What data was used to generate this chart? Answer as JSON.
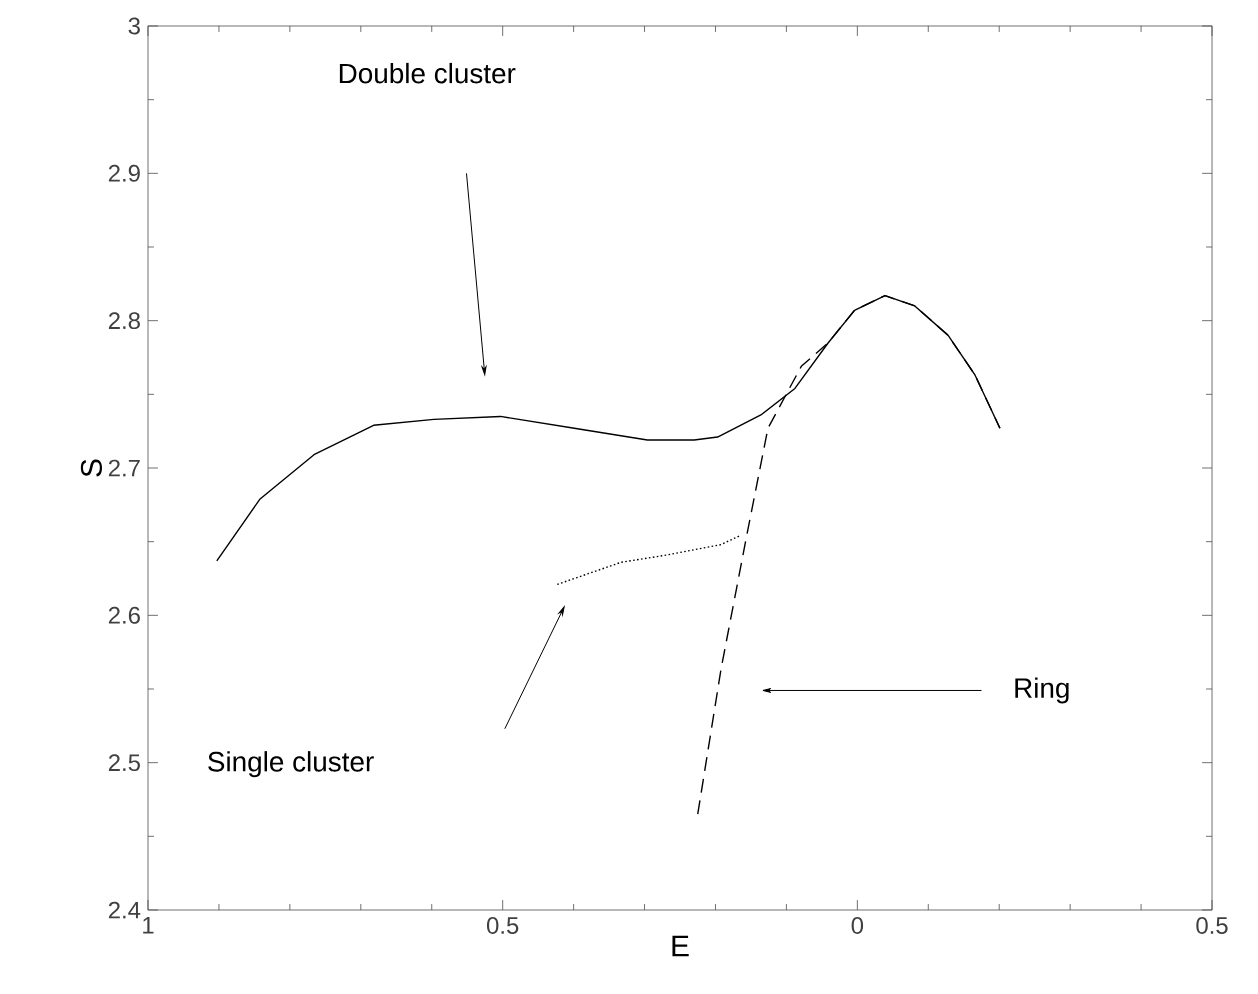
{
  "chart_data": {
    "type": "line",
    "xlabel": "E",
    "ylabel": "S",
    "xlim": [
      -1,
      0.5
    ],
    "ylim": [
      2.4,
      3
    ],
    "xticks": [
      {
        "value": -1,
        "label": "1"
      },
      {
        "value": -0.5,
        "label": "0.5"
      },
      0,
      0.5
    ],
    "yticks": [
      2.4,
      2.5,
      2.6,
      2.7,
      2.8,
      2.9,
      3
    ],
    "marker": "none",
    "series": [
      {
        "color": "#000000",
        "line_style": "solid",
        "x": [
          -0.903,
          -0.842,
          -0.766,
          -0.682,
          -0.597,
          -0.503,
          -0.399,
          -0.296,
          -0.23,
          -0.197,
          -0.136,
          -0.088,
          -0.041,
          -0.004,
          0.039,
          0.081,
          0.128,
          0.166,
          0.201
        ],
        "values": [
          2.637,
          2.679,
          2.709,
          2.729,
          2.733,
          2.735,
          2.727,
          2.719,
          2.719,
          2.721,
          2.736,
          2.754,
          2.785,
          2.807,
          2.817,
          2.81,
          2.79,
          2.763,
          2.727
        ]
      },
      {
        "color": "#000000",
        "line_style": "dotted",
        "x": [
          -0.423,
          -0.333,
          -0.268,
          -0.192,
          -0.166
        ],
        "values": [
          2.621,
          2.636,
          2.641,
          2.648,
          2.654
        ]
      },
      {
        "color": "#000000",
        "line_style": "dashed",
        "x": [
          -0.225,
          -0.192,
          -0.156,
          -0.126,
          -0.079,
          -0.041,
          -0.004,
          0.039,
          0.081,
          0.128,
          0.166,
          0.201
        ],
        "values": [
          2.465,
          2.564,
          2.654,
          2.727,
          2.769,
          2.785,
          2.807,
          2.817,
          2.81,
          2.79,
          2.763,
          2.727
        ]
      }
    ],
    "annotations": [
      "Double cluster",
      "Single cluster",
      "Ring"
    ]
  }
}
